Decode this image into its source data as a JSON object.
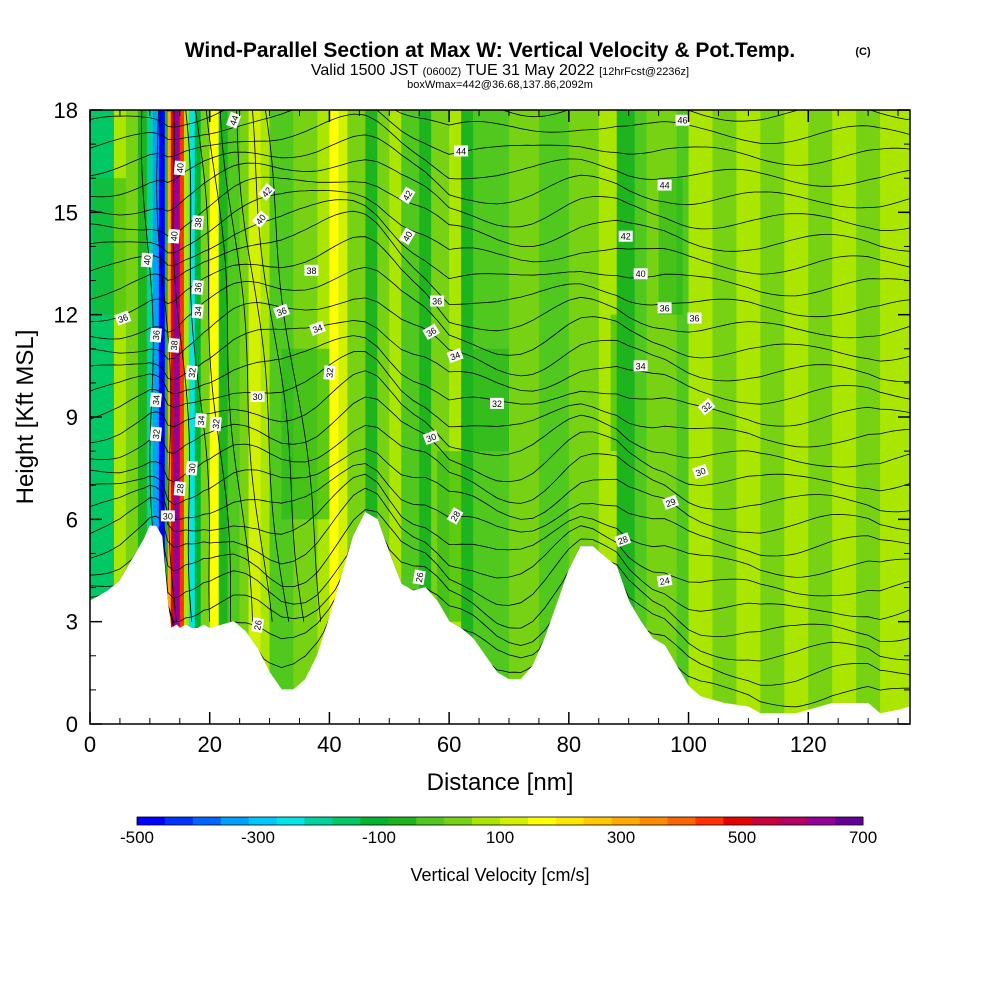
{
  "title": "Wind-Parallel Section at Max W: Vertical Velocity & Pot.Temp.",
  "title_mark": "(C)",
  "subtitle": {
    "part1": "Valid 1500 JST",
    "part2": "(0600Z)",
    "part3": "TUE 31 May 2022",
    "part4": "[12hrFcst@2236z]"
  },
  "subtitle2": "boxWmax=442@36.68,137.86,2092m",
  "chart_data": {
    "type": "heatmap",
    "xlabel": "Distance [nm]",
    "ylabel": "Height [Kft MSL]",
    "xlim": [
      0,
      137
    ],
    "ylim": [
      0,
      18
    ],
    "x_ticks": [
      0,
      20,
      40,
      60,
      80,
      100,
      120
    ],
    "y_ticks": [
      0,
      3,
      6,
      9,
      12,
      15,
      18
    ],
    "colorbar": {
      "label": "Vertical Velocity [cm/s]",
      "min": -500,
      "max": 700,
      "tick_labels": [
        "-500",
        "-300",
        "-100",
        "100",
        "300",
        "500",
        "700"
      ],
      "tick_values": [
        -500,
        -300,
        -100,
        100,
        300,
        500,
        700
      ],
      "colors": [
        "#0000ff",
        "#0033ff",
        "#0066ff",
        "#00a0ff",
        "#00c8ff",
        "#00e6e6",
        "#00d2a0",
        "#00c864",
        "#00b432",
        "#1eb41e",
        "#50c81e",
        "#78d214",
        "#aae600",
        "#d2f000",
        "#ffff00",
        "#ffe600",
        "#ffc800",
        "#ffaa00",
        "#ff8c00",
        "#ff6400",
        "#ff3200",
        "#e60000",
        "#c8003c",
        "#b40064",
        "#960096",
        "#640096"
      ]
    },
    "terrain": [
      [
        0,
        3.6
      ],
      [
        3,
        3.9
      ],
      [
        5,
        4.2
      ],
      [
        7,
        4.8
      ],
      [
        9,
        5.4
      ],
      [
        10,
        5.8
      ],
      [
        11,
        5.8
      ],
      [
        12,
        5.5
      ],
      [
        13,
        3.5
      ],
      [
        13.5,
        2.8
      ],
      [
        14.5,
        2.9
      ],
      [
        15,
        2.8
      ],
      [
        16,
        2.9
      ],
      [
        17,
        2.8
      ],
      [
        18,
        2.8
      ],
      [
        19,
        2.9
      ],
      [
        20,
        2.8
      ],
      [
        22,
        2.9
      ],
      [
        24,
        3.0
      ],
      [
        26,
        2.7
      ],
      [
        28,
        2.2
      ],
      [
        30,
        1.5
      ],
      [
        32,
        1.0
      ],
      [
        34,
        1.0
      ],
      [
        36,
        1.3
      ],
      [
        38,
        2.0
      ],
      [
        40,
        3.1
      ],
      [
        42,
        4.3
      ],
      [
        44,
        5.5
      ],
      [
        46,
        6.2
      ],
      [
        48,
        6.0
      ],
      [
        50,
        5.0
      ],
      [
        52,
        4.1
      ],
      [
        54,
        3.9
      ],
      [
        56,
        4.0
      ],
      [
        58,
        3.6
      ],
      [
        60,
        3.0
      ],
      [
        62,
        2.8
      ],
      [
        64,
        2.5
      ],
      [
        66,
        2.0
      ],
      [
        68,
        1.5
      ],
      [
        70,
        1.3
      ],
      [
        72,
        1.3
      ],
      [
        74,
        1.7
      ],
      [
        76,
        2.5
      ],
      [
        78,
        3.5
      ],
      [
        80,
        4.5
      ],
      [
        82,
        5.2
      ],
      [
        84,
        5.2
      ],
      [
        86,
        4.9
      ],
      [
        88,
        4.6
      ],
      [
        90,
        3.6
      ],
      [
        92,
        3.0
      ],
      [
        94,
        2.5
      ],
      [
        96,
        2.3
      ],
      [
        98,
        1.7
      ],
      [
        100,
        1.1
      ],
      [
        102,
        0.8
      ],
      [
        106,
        0.6
      ],
      [
        110,
        0.5
      ],
      [
        112,
        0.3
      ],
      [
        118,
        0.3
      ],
      [
        124,
        0.6
      ],
      [
        130,
        0.6
      ],
      [
        132,
        0.3
      ],
      [
        135,
        0.4
      ],
      [
        137,
        0.5
      ]
    ],
    "contour_labels": [
      {
        "x": 24,
        "y": 17.7,
        "text": "44",
        "angle": -70
      },
      {
        "x": 99,
        "y": 17.7,
        "text": "46",
        "angle": 0
      },
      {
        "x": 62,
        "y": 16.8,
        "text": "44",
        "angle": 0
      },
      {
        "x": 96,
        "y": 15.8,
        "text": "44",
        "angle": 0
      },
      {
        "x": 15,
        "y": 16.3,
        "text": "40",
        "angle": -85
      },
      {
        "x": 29.5,
        "y": 15.6,
        "text": "42",
        "angle": -50
      },
      {
        "x": 53,
        "y": 15.5,
        "text": "42",
        "angle": -60
      },
      {
        "x": 18,
        "y": 14.7,
        "text": "38",
        "angle": -85
      },
      {
        "x": 14,
        "y": 14.3,
        "text": "40",
        "angle": -85
      },
      {
        "x": 28.5,
        "y": 14.8,
        "text": "40",
        "angle": -50
      },
      {
        "x": 53,
        "y": 14.3,
        "text": "40",
        "angle": -60
      },
      {
        "x": 89.5,
        "y": 14.3,
        "text": "42",
        "angle": 0
      },
      {
        "x": 9.5,
        "y": 13.6,
        "text": "40",
        "angle": -85
      },
      {
        "x": 37,
        "y": 13.3,
        "text": "38",
        "angle": 0
      },
      {
        "x": 92,
        "y": 13.2,
        "text": "40",
        "angle": 0
      },
      {
        "x": 18,
        "y": 12.8,
        "text": "36",
        "angle": -85
      },
      {
        "x": 58,
        "y": 12.4,
        "text": "36",
        "angle": 0
      },
      {
        "x": 96,
        "y": 12.2,
        "text": "36",
        "angle": 0
      },
      {
        "x": 5.5,
        "y": 11.9,
        "text": "36",
        "angle": -20
      },
      {
        "x": 32,
        "y": 12.1,
        "text": "36",
        "angle": -20
      },
      {
        "x": 18,
        "y": 12.1,
        "text": "34",
        "angle": -85
      },
      {
        "x": 101,
        "y": 11.9,
        "text": "36",
        "angle": 0
      },
      {
        "x": 38,
        "y": 11.6,
        "text": "34",
        "angle": -20
      },
      {
        "x": 57,
        "y": 11.5,
        "text": "36",
        "angle": -30
      },
      {
        "x": 11,
        "y": 11.4,
        "text": "36",
        "angle": -85
      },
      {
        "x": 14,
        "y": 11.1,
        "text": "38",
        "angle": -85
      },
      {
        "x": 61,
        "y": 10.8,
        "text": "34",
        "angle": -20
      },
      {
        "x": 92,
        "y": 10.5,
        "text": "34",
        "angle": 0
      },
      {
        "x": 40,
        "y": 10.3,
        "text": "32",
        "angle": -85
      },
      {
        "x": 17,
        "y": 10.3,
        "text": "32",
        "angle": -85
      },
      {
        "x": 28,
        "y": 9.6,
        "text": "30",
        "angle": 0
      },
      {
        "x": 68,
        "y": 9.4,
        "text": "32",
        "angle": 0
      },
      {
        "x": 103,
        "y": 9.3,
        "text": "32",
        "angle": -40
      },
      {
        "x": 11,
        "y": 9.5,
        "text": "34",
        "angle": -85
      },
      {
        "x": 18.5,
        "y": 8.9,
        "text": "34",
        "angle": -85
      },
      {
        "x": 21,
        "y": 8.8,
        "text": "32",
        "angle": -85
      },
      {
        "x": 11,
        "y": 8.5,
        "text": "32",
        "angle": -85
      },
      {
        "x": 57,
        "y": 8.4,
        "text": "30",
        "angle": -20
      },
      {
        "x": 17,
        "y": 7.5,
        "text": "30",
        "angle": -85
      },
      {
        "x": 102,
        "y": 7.4,
        "text": "30",
        "angle": -20
      },
      {
        "x": 15,
        "y": 6.9,
        "text": "28",
        "angle": -85
      },
      {
        "x": 97,
        "y": 6.5,
        "text": "29",
        "angle": -20
      },
      {
        "x": 61,
        "y": 6.1,
        "text": "28",
        "angle": -60
      },
      {
        "x": 13,
        "y": 6.1,
        "text": "30",
        "angle": 0
      },
      {
        "x": 89,
        "y": 5.4,
        "text": "28",
        "angle": -20
      },
      {
        "x": 55,
        "y": 4.3,
        "text": "26",
        "angle": -80
      },
      {
        "x": 96,
        "y": 4.2,
        "text": "24",
        "angle": -10
      },
      {
        "x": 28,
        "y": 2.9,
        "text": "26",
        "angle": -80
      }
    ]
  }
}
